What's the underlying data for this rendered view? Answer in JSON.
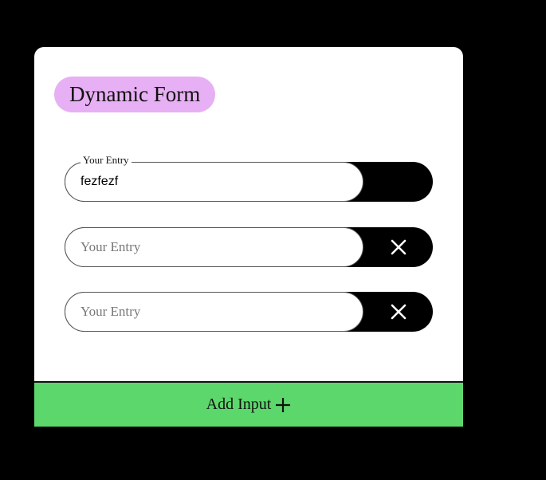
{
  "form": {
    "title": "Dynamic Form",
    "fields": [
      {
        "label": "Your Entry",
        "value": "fezfezf",
        "placeholder": "Your Entry",
        "removable": false
      },
      {
        "label": "Your Entry",
        "value": "",
        "placeholder": "Your Entry",
        "removable": true
      },
      {
        "label": "Your Entry",
        "value": "",
        "placeholder": "Your Entry",
        "removable": true
      }
    ],
    "add_label": "Add Input",
    "icons": {
      "remove": "close-icon",
      "add": "plus-icon"
    }
  },
  "colors": {
    "background": "#000000",
    "card": "#ffffff",
    "title_pill": "#e8b0f4",
    "add_bar": "#5cd76c",
    "remove_bar": "#000000"
  }
}
